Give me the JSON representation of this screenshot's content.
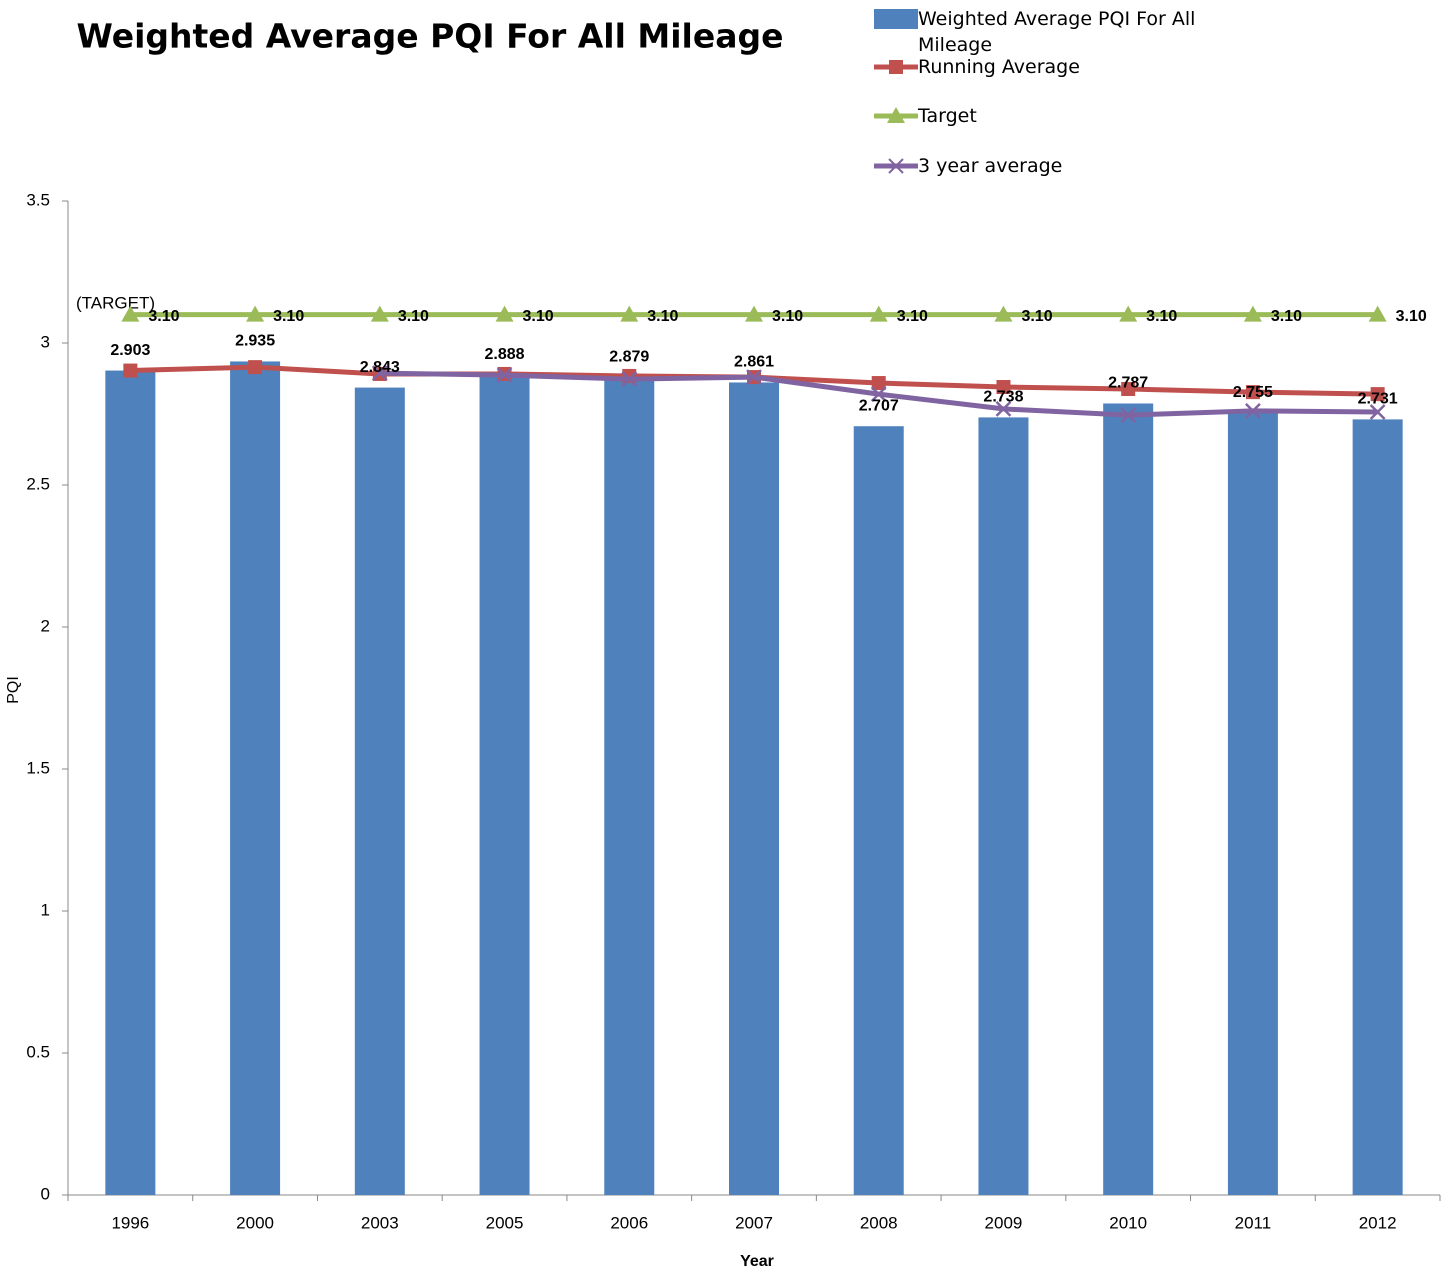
{
  "chart_data": {
    "type": "bar",
    "title": "Weighted Average PQI For All Mileage",
    "x_label": "Year",
    "y_label": "PQI",
    "annotation": "(TARGET)",
    "categories": [
      "1996",
      "2000",
      "2003",
      "2005",
      "2006",
      "2007",
      "2008",
      "2009",
      "2010",
      "2011",
      "2012"
    ],
    "series": [
      {
        "name": "Weighted Average PQI For All Mileage",
        "type": "bar",
        "color": "#4f81bd",
        "values": [
          2.903,
          2.935,
          2.843,
          2.888,
          2.879,
          2.861,
          2.707,
          2.738,
          2.787,
          2.755,
          2.731
        ]
      },
      {
        "name": "Running Average",
        "type": "line",
        "marker": "square",
        "color": "#c0504d",
        "values": [
          2.903,
          2.915,
          2.891,
          2.891,
          2.884,
          2.88,
          2.859,
          2.845,
          2.838,
          2.827,
          2.82
        ]
      },
      {
        "name": "Target",
        "type": "line",
        "marker": "triangle",
        "color": "#9bbb59",
        "values": [
          3.1,
          3.1,
          3.1,
          3.1,
          3.1,
          3.1,
          3.1,
          3.1,
          3.1,
          3.1,
          3.1
        ],
        "value_labels": [
          "3.10",
          "3.10",
          "3.10",
          "3.10",
          "3.10",
          "3.10",
          "3.10",
          "3.10",
          "3.10",
          "3.10",
          "3.10"
        ]
      },
      {
        "name": "3 year average",
        "type": "line",
        "marker": "x",
        "color": "#8064a2",
        "values": [
          null,
          null,
          2.894,
          2.887,
          2.873,
          2.88,
          2.82,
          2.768,
          2.746,
          2.761,
          2.757
        ]
      }
    ],
    "ylim": [
      0,
      3.5
    ],
    "yticks": [
      0,
      0.5,
      1,
      1.5,
      2,
      2.5,
      3,
      3.5
    ],
    "grid": false
  }
}
